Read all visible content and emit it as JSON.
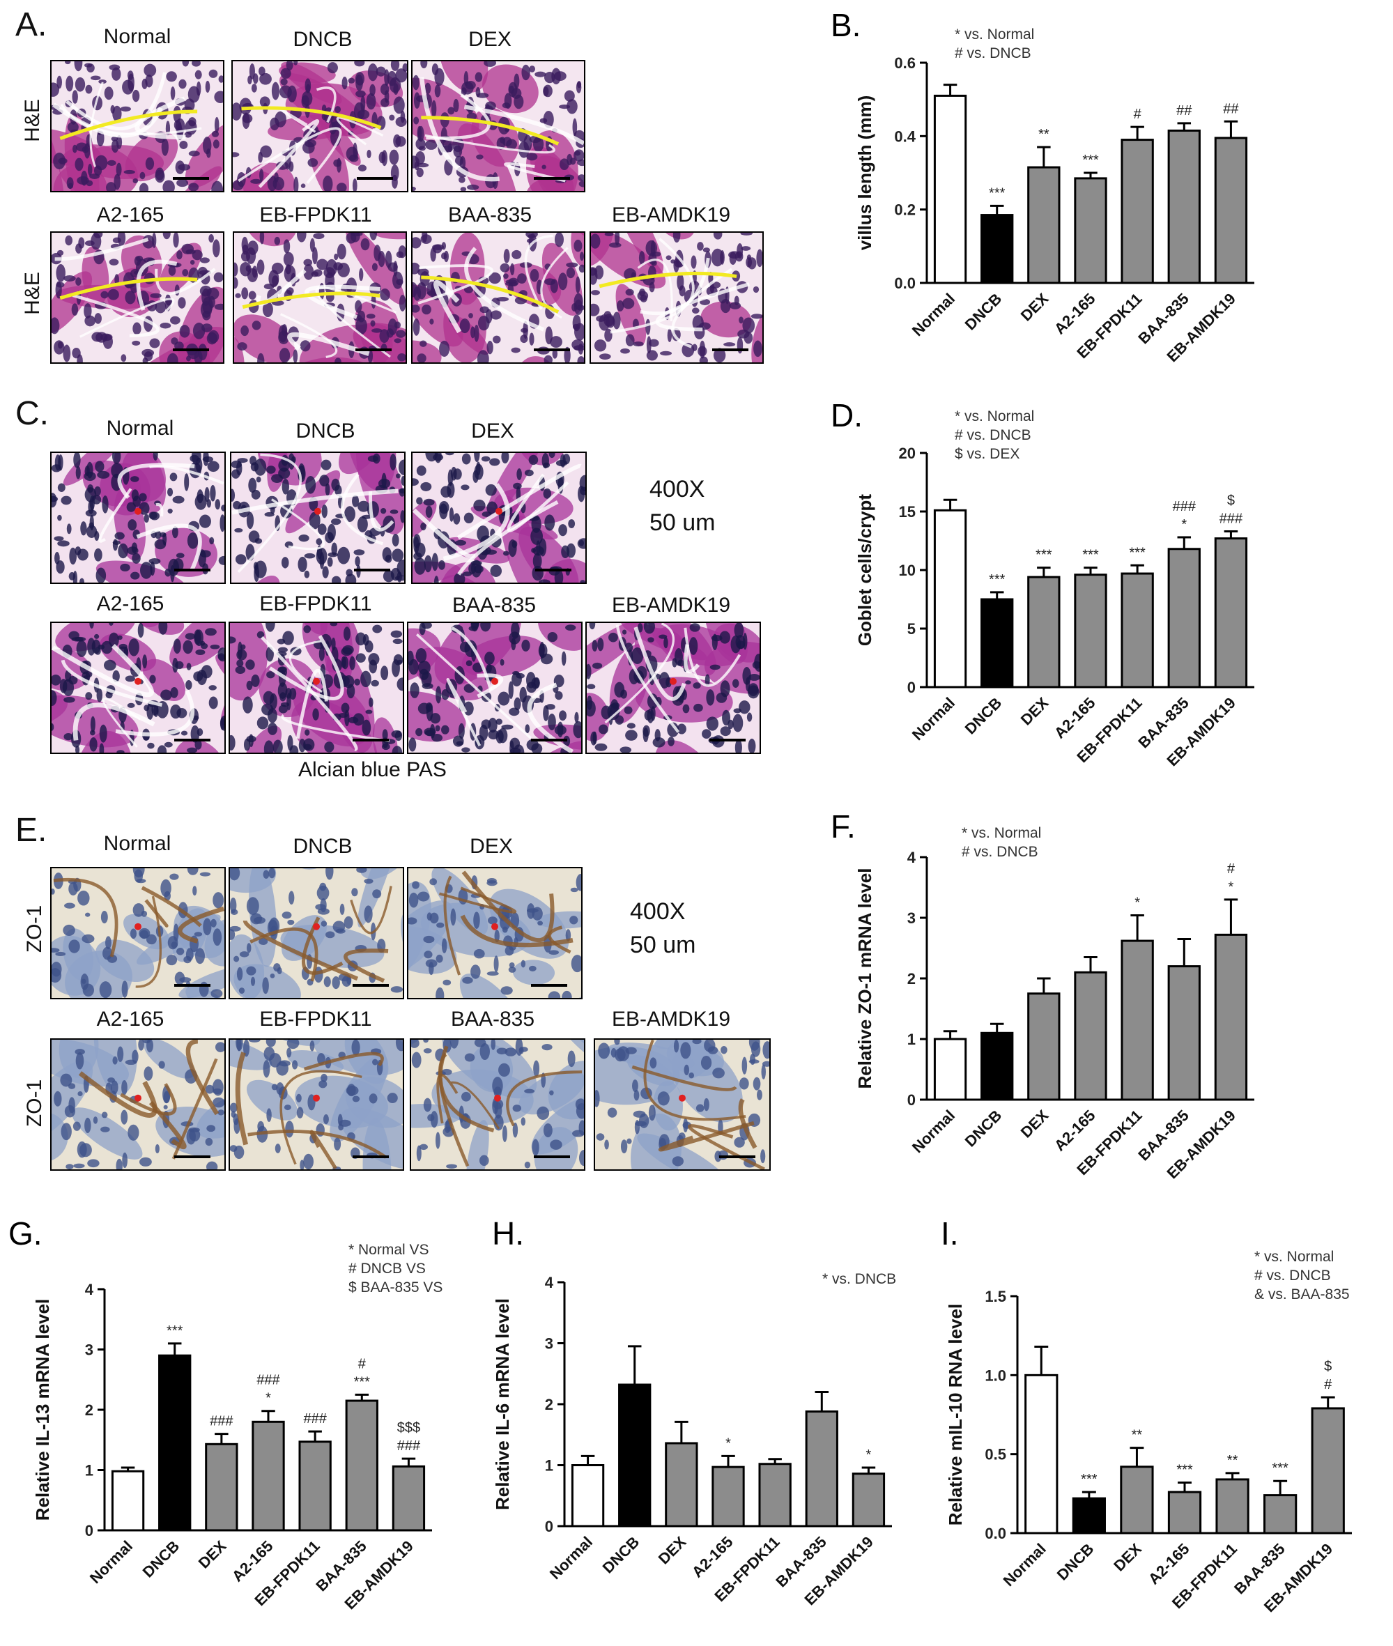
{
  "figure": {
    "panels": [
      {
        "id": "A",
        "letter": "A.",
        "row_label": "H&E",
        "groups": [
          "Normal",
          "DNCB",
          "DEX",
          "A2-165",
          "EB-FPDK11",
          "BAA-835",
          "EB-AMDK19"
        ]
      },
      {
        "id": "C",
        "letter": "C.",
        "caption": "Alcian blue PAS",
        "magnification": "400X",
        "scale": "50 um",
        "groups": [
          "Normal",
          "DNCB",
          "DEX",
          "A2-165",
          "EB-FPDK11",
          "BAA-835",
          "EB-AMDK19"
        ]
      },
      {
        "id": "E",
        "letter": "E.",
        "row_label": "ZO-1",
        "magnification": "400X",
        "scale": "50 um",
        "groups": [
          "Normal",
          "DNCB",
          "DEX",
          "A2-165",
          "EB-FPDK11",
          "BAA-835",
          "EB-AMDK19"
        ]
      }
    ]
  },
  "colors": {
    "he_base": "#b0338f",
    "he_light": "#e8a6d2",
    "he_dark": "#3a1b5e",
    "pas_base": "#a8339a",
    "pas_dark": "#1c1848",
    "ihc_base": "#8da2c8",
    "ihc_brown": "#8a5a2b",
    "ihc_bg": "#e9e3d4",
    "yellow_line": "#f2ea22",
    "bar_normal": "#ffffff",
    "bar_dncb": "#000000",
    "bar_treat": "#8c8c8c"
  },
  "chart_data": [
    {
      "id": "B",
      "letter": "B.",
      "type": "bar",
      "categories": [
        "Normal",
        "DNCB",
        "DEX",
        "A2-165",
        "EB-FPDK11",
        "BAA-835",
        "EB-AMDK19"
      ],
      "values": [
        0.51,
        0.185,
        0.315,
        0.285,
        0.39,
        0.415,
        0.395
      ],
      "errors": [
        0.03,
        0.025,
        0.055,
        0.015,
        0.035,
        0.02,
        0.045
      ],
      "annotations": [
        [],
        [
          "***"
        ],
        [
          "**"
        ],
        [
          "***"
        ],
        [
          "#"
        ],
        [
          "##"
        ],
        [
          "##"
        ]
      ],
      "ylabel": "villus length (mm)",
      "ylim": [
        0,
        0.6
      ],
      "yticks": [
        "0.0",
        "0.2",
        "0.4",
        "0.6"
      ],
      "legend": [
        "* vs. Normal",
        "# vs. DNCB"
      ]
    },
    {
      "id": "D",
      "letter": "D.",
      "type": "bar",
      "categories": [
        "Normal",
        "DNCB",
        "DEX",
        "A2-165",
        "EB-FPDK11",
        "BAA-835",
        "EB-AMDK19"
      ],
      "values": [
        15.1,
        7.5,
        9.4,
        9.6,
        9.7,
        11.8,
        12.7
      ],
      "errors": [
        0.9,
        0.6,
        0.8,
        0.6,
        0.7,
        1.0,
        0.6
      ],
      "annotations": [
        [],
        [
          "***"
        ],
        [
          "***"
        ],
        [
          "***"
        ],
        [
          "***"
        ],
        [
          "*",
          "###"
        ],
        [
          "###",
          "$"
        ]
      ],
      "ylabel": "Goblet cells/crypt",
      "ylim": [
        0,
        20
      ],
      "yticks": [
        "0",
        "5",
        "10",
        "15",
        "20"
      ],
      "legend": [
        "* vs. Normal",
        "# vs. DNCB",
        "$ vs. DEX"
      ]
    },
    {
      "id": "F",
      "letter": "F.",
      "type": "bar",
      "categories": [
        "Normal",
        "DNCB",
        "DEX",
        "A2-165",
        "EB-FPDK11",
        "BAA-835",
        "EB-AMDK19"
      ],
      "values": [
        1.0,
        1.1,
        1.75,
        2.1,
        2.62,
        2.2,
        2.72
      ],
      "errors": [
        0.13,
        0.15,
        0.25,
        0.25,
        0.42,
        0.45,
        0.58
      ],
      "annotations": [
        [],
        [],
        [],
        [],
        [
          "*"
        ],
        [],
        [
          "*",
          "#"
        ]
      ],
      "ylabel": "Relative ZO-1 mRNA level",
      "ylim": [
        0,
        4
      ],
      "yticks": [
        "0",
        "1",
        "2",
        "3",
        "4"
      ],
      "legend": [
        "* vs. Normal",
        "# vs. DNCB"
      ]
    },
    {
      "id": "G",
      "letter": "G.",
      "type": "bar",
      "categories": [
        "Normal",
        "DNCB",
        "DEX",
        "A2-165",
        "EB-FPDK11",
        "BAA-835",
        "EB-AMDK19"
      ],
      "values": [
        0.98,
        2.9,
        1.43,
        1.8,
        1.47,
        2.15,
        1.06
      ],
      "errors": [
        0.06,
        0.2,
        0.17,
        0.18,
        0.17,
        0.1,
        0.13
      ],
      "annotations": [
        [],
        [
          "***"
        ],
        [
          "###"
        ],
        [
          "*",
          "###"
        ],
        [
          "###"
        ],
        [
          "***",
          "#"
        ],
        [
          "###",
          "$$$"
        ]
      ],
      "ylabel": "Relative IL-13 mRNA level",
      "ylim": [
        0,
        4
      ],
      "yticks": [
        "0",
        "1",
        "2",
        "3",
        "4"
      ],
      "legend": [
        "* Normal VS",
        "# DNCB VS",
        "$ BAA-835 VS"
      ]
    },
    {
      "id": "H",
      "letter": "H.",
      "type": "bar",
      "categories": [
        "Normal",
        "DNCB",
        "DEX",
        "A2-165",
        "EB-FPDK11",
        "BAA-835",
        "EB-AMDK19"
      ],
      "values": [
        1.0,
        2.32,
        1.36,
        0.97,
        1.02,
        1.88,
        0.86
      ],
      "errors": [
        0.15,
        0.63,
        0.35,
        0.18,
        0.08,
        0.32,
        0.1
      ],
      "annotations": [
        [],
        [],
        [],
        [
          "*"
        ],
        [],
        [],
        [
          "*"
        ]
      ],
      "ylabel": "Relative IL-6 mRNA level",
      "ylim": [
        0,
        4
      ],
      "yticks": [
        "0",
        "1",
        "2",
        "3",
        "4"
      ],
      "legend": [
        "* vs. DNCB"
      ]
    },
    {
      "id": "I",
      "letter": "I.",
      "type": "bar",
      "categories": [
        "Normal",
        "DNCB",
        "DEX",
        "A2-165",
        "EB-FPDK11",
        "BAA-835",
        "EB-AMDK19"
      ],
      "values": [
        1.0,
        0.22,
        0.42,
        0.26,
        0.34,
        0.24,
        0.79
      ],
      "errors": [
        0.18,
        0.04,
        0.12,
        0.06,
        0.04,
        0.09,
        0.07
      ],
      "annotations": [
        [],
        [
          "***"
        ],
        [
          "**"
        ],
        [
          "***"
        ],
        [
          "**"
        ],
        [
          "***"
        ],
        [
          "#",
          "$"
        ]
      ],
      "ylabel": "Relative mIL-10 RNA level",
      "ylim": [
        0,
        1.5
      ],
      "yticks": [
        "0.0",
        "0.5",
        "1.0",
        "1.5"
      ],
      "legend": [
        "* vs. Normal",
        "# vs. DNCB",
        "& vs. BAA-835"
      ]
    }
  ]
}
